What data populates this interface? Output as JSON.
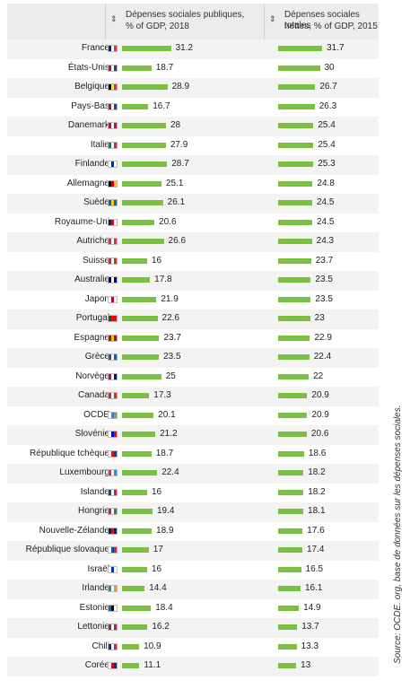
{
  "chart_data": {
    "type": "bar",
    "series": [
      {
        "name": "Dépenses sociales publiques, % of GDP, 2018"
      },
      {
        "name": "Dépenses sociales totales nettes, % of GDP, 2015"
      }
    ],
    "header": {
      "col1_line1": "Dépenses sociales publiques,",
      "col1_line2": "% of GDP, 2018",
      "col2_line1": "Dépenses sociales totales",
      "col2_line2": "nettes, % of GDP, 2015",
      "sort_glyph": "⇕"
    },
    "rows": [
      {
        "country": "France",
        "v1": 31.2,
        "v2": 31.7,
        "flag": [
          "#002395",
          "#ffffff",
          "#ed2939"
        ]
      },
      {
        "country": "États-Unis",
        "v1": 18.7,
        "v2": 30,
        "flag": [
          "#b22234",
          "#ffffff",
          "#3c3b6e"
        ]
      },
      {
        "country": "Belgique",
        "v1": 28.9,
        "v2": 26.7,
        "flag": [
          "#000000",
          "#fae042",
          "#ed2939"
        ]
      },
      {
        "country": "Pays-Bas",
        "v1": 16.7,
        "v2": 26.3,
        "flag": [
          "#ae1c28",
          "#ffffff",
          "#21468b"
        ]
      },
      {
        "country": "Danemark",
        "v1": 28,
        "v2": 25.4,
        "flag": [
          "#c60c30",
          "#ffffff",
          "#c60c30"
        ]
      },
      {
        "country": "Italie",
        "v1": 27.9,
        "v2": 25.4,
        "flag": [
          "#009246",
          "#ffffff",
          "#ce2b37"
        ]
      },
      {
        "country": "Finlande",
        "v1": 28.7,
        "v2": 25.3,
        "flag": [
          "#ffffff",
          "#003580",
          "#ffffff"
        ]
      },
      {
        "country": "Allemagne",
        "v1": 25.1,
        "v2": 24.8,
        "flag": [
          "#000000",
          "#dd0000",
          "#ffce00"
        ]
      },
      {
        "country": "Suède",
        "v1": 26.1,
        "v2": 24.5,
        "flag": [
          "#006aa7",
          "#fecc00",
          "#006aa7"
        ]
      },
      {
        "country": "Royaume-Uni",
        "v1": 20.6,
        "v2": 24.5,
        "flag": [
          "#012169",
          "#c8102e",
          "#ffffff"
        ]
      },
      {
        "country": "Autriche",
        "v1": 26.6,
        "v2": 24.3,
        "flag": [
          "#ed2939",
          "#ffffff",
          "#ed2939"
        ]
      },
      {
        "country": "Suisse",
        "v1": 16,
        "v2": 23.7,
        "flag": [
          "#d52b1e",
          "#ffffff",
          "#d52b1e"
        ]
      },
      {
        "country": "Australie",
        "v1": 17.8,
        "v2": 23.5,
        "flag": [
          "#00008b",
          "#ffffff",
          "#00008b"
        ]
      },
      {
        "country": "Japon",
        "v1": 21.9,
        "v2": 23.5,
        "flag": [
          "#ffffff",
          "#bc002d",
          "#ffffff"
        ]
      },
      {
        "country": "Portugal",
        "v1": 22.6,
        "v2": 23,
        "flag": [
          "#006600",
          "#ff0000",
          "#ff0000"
        ]
      },
      {
        "country": "Espagne",
        "v1": 23.7,
        "v2": 22.9,
        "flag": [
          "#aa151b",
          "#f1bf00",
          "#aa151b"
        ]
      },
      {
        "country": "Grèce",
        "v1": 23.5,
        "v2": 22.4,
        "flag": [
          "#0d5eaf",
          "#ffffff",
          "#0d5eaf"
        ]
      },
      {
        "country": "Norvège",
        "v1": 25,
        "v2": 22,
        "flag": [
          "#ba0c2f",
          "#ffffff",
          "#00205b"
        ]
      },
      {
        "country": "Canada",
        "v1": 17.3,
        "v2": 20.9,
        "flag": [
          "#d52b1e",
          "#ffffff",
          "#d52b1e"
        ]
      },
      {
        "country": "OCDE",
        "v1": 20.1,
        "v2": 20.9,
        "flag": [
          "#ffffff",
          "#4a7fb5",
          "#6ab04c"
        ]
      },
      {
        "country": "Slovénie",
        "v1": 21.2,
        "v2": 20.6,
        "flag": [
          "#ffffff",
          "#0000ff",
          "#ff0000"
        ]
      },
      {
        "country": "République tchèque",
        "v1": 18.7,
        "v2": 18.6,
        "flag": [
          "#ffffff",
          "#d7141a",
          "#11457e"
        ]
      },
      {
        "country": "Luxembourg",
        "v1": 22.4,
        "v2": 18.2,
        "flag": [
          "#ed2939",
          "#ffffff",
          "#00a1de"
        ]
      },
      {
        "country": "Islande",
        "v1": 16,
        "v2": 18.2,
        "flag": [
          "#02529c",
          "#ffffff",
          "#dc1e35"
        ]
      },
      {
        "country": "Hongrie",
        "v1": 19.4,
        "v2": 18.1,
        "flag": [
          "#ce2939",
          "#ffffff",
          "#477050"
        ]
      },
      {
        "country": "Nouvelle-Zélande",
        "v1": 18.9,
        "v2": 17.6,
        "flag": [
          "#00247d",
          "#cc142b",
          "#00247d"
        ]
      },
      {
        "country": "République slovaque",
        "v1": 17,
        "v2": 17.4,
        "flag": [
          "#ffffff",
          "#0b4ea2",
          "#ee1c25"
        ]
      },
      {
        "country": "Israël",
        "v1": 16,
        "v2": 16.5,
        "flag": [
          "#ffffff",
          "#0038b8",
          "#ffffff"
        ]
      },
      {
        "country": "Irlande",
        "v1": 14.4,
        "v2": 16.1,
        "flag": [
          "#169b62",
          "#ffffff",
          "#ff883e"
        ]
      },
      {
        "country": "Estonie",
        "v1": 18.4,
        "v2": 14.9,
        "flag": [
          "#0072ce",
          "#000000",
          "#ffffff"
        ]
      },
      {
        "country": "Lettonie",
        "v1": 16.2,
        "v2": 13.7,
        "flag": [
          "#9e3039",
          "#ffffff",
          "#9e3039"
        ]
      },
      {
        "country": "Chili",
        "v1": 10.9,
        "v2": 13.3,
        "flag": [
          "#0039a6",
          "#ffffff",
          "#d52b1e"
        ]
      },
      {
        "country": "Corée",
        "v1": 11.1,
        "v2": 13,
        "flag": [
          "#ffffff",
          "#c60c30",
          "#003478"
        ]
      }
    ],
    "bar_color": "#7ac143"
  },
  "source": "Source: OCDE. org, base de données sur les dépenses sociales."
}
